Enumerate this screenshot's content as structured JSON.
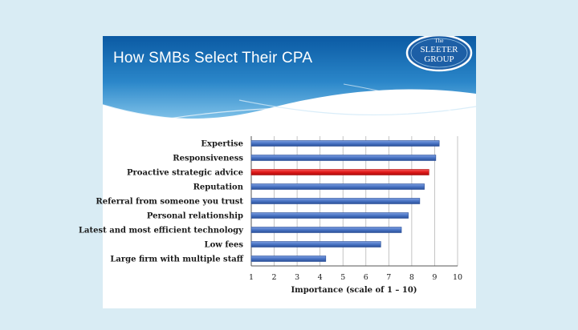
{
  "header": {
    "title": "How SMBs Select Their CPA"
  },
  "logo": {
    "line1": "The",
    "line2": "SLEETER",
    "line3": "GROUP"
  },
  "colors": {
    "bar": "#4a74c4",
    "bar_dark": "#2a4f98",
    "highlight": "#e01818",
    "highlight_dark": "#a80c0c",
    "header_blue": "#1d70b4",
    "background": "#d9ecf4"
  },
  "chart_data": {
    "type": "bar",
    "orientation": "horizontal",
    "title": "",
    "xlabel": "Importance  (scale of 1 – 10)",
    "ylabel": "",
    "xlim": [
      1,
      10
    ],
    "xticks": [
      "1",
      "2",
      "3",
      "4",
      "5",
      "6",
      "7",
      "8",
      "9",
      "10"
    ],
    "grid": "vertical",
    "highlight_index": 2,
    "categories": [
      "Expertise",
      "Responsiveness",
      "Proactive strategic advice",
      "Reputation",
      "Referral from someone you trust",
      "Personal relationship",
      "Latest and most efficient technology",
      "Low fees",
      "Large firm with multiple staff"
    ],
    "values": [
      9.2,
      9.05,
      8.75,
      8.55,
      8.35,
      7.85,
      7.55,
      6.65,
      4.25
    ]
  }
}
